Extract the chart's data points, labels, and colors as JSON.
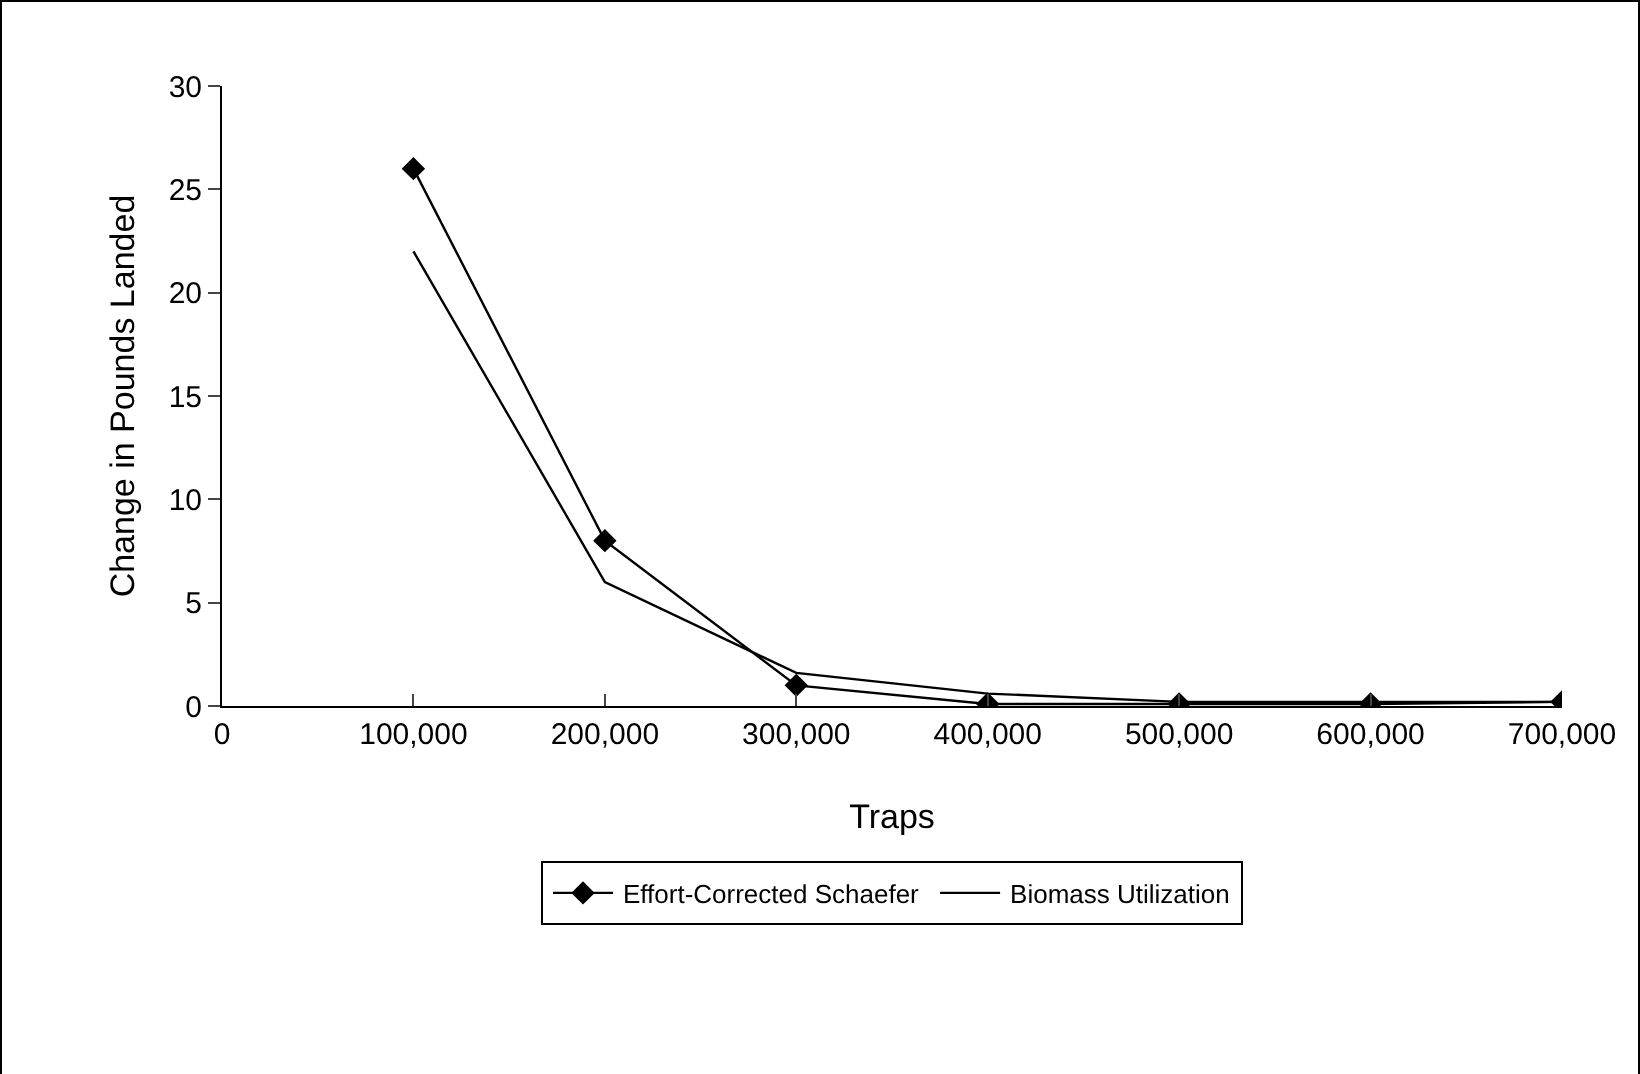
{
  "chart_data": {
    "type": "line",
    "xlabel": "Traps",
    "ylabel": "Change in Pounds Landed",
    "x": [
      100000,
      200000,
      300000,
      400000,
      500000,
      600000,
      700000
    ],
    "series": [
      {
        "name": "Effort-Corrected Schaefer",
        "color": "#000000",
        "marker": "diamond",
        "values": [
          26,
          8,
          1,
          0.1,
          0.1,
          0.1,
          0.2
        ]
      },
      {
        "name": "Biomass Utilization",
        "color": "#000000",
        "marker": "none",
        "values": [
          22,
          6,
          1.6,
          0.6,
          0.2,
          0.2,
          0.2
        ]
      }
    ],
    "xlim": [
      0,
      700000
    ],
    "xticks": [
      {
        "value": 0,
        "label": "0"
      },
      {
        "value": 100000,
        "label": "100,000"
      },
      {
        "value": 200000,
        "label": "200,000"
      },
      {
        "value": 300000,
        "label": "300,000"
      },
      {
        "value": 400000,
        "label": "400,000"
      },
      {
        "value": 500000,
        "label": "500,000"
      },
      {
        "value": 600000,
        "label": "600,000"
      },
      {
        "value": 700000,
        "label": "700,000"
      }
    ],
    "ylim": [
      0,
      30
    ],
    "yticks": [
      0,
      5,
      10,
      15,
      20,
      25,
      30
    ],
    "grid": false,
    "legend": "bottom",
    "line_style": "solid"
  }
}
